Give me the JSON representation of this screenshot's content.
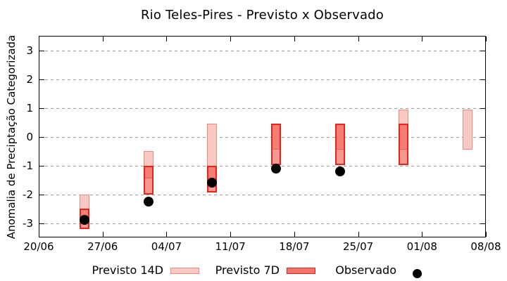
{
  "chart_data": {
    "type": "rangebar",
    "title": "Rio Teles-Pires - Previsto x Observado",
    "ylabel": "Anomalia de Preciptação Categorizada",
    "xlabel": "",
    "ylim": [
      -3.5,
      3.5
    ],
    "xlim_days": [
      0,
      49
    ],
    "y_ticks": [
      3,
      2,
      1,
      0,
      -1,
      -2,
      -3
    ],
    "x_ticks": [
      {
        "day": 0,
        "label": "20/06"
      },
      {
        "day": 7,
        "label": "27/06"
      },
      {
        "day": 14,
        "label": "04/07"
      },
      {
        "day": 21,
        "label": "11/07"
      },
      {
        "day": 28,
        "label": "18/07"
      },
      {
        "day": 35,
        "label": "25/07"
      },
      {
        "day": 42,
        "label": "01/08"
      },
      {
        "day": 49,
        "label": "08/08"
      }
    ],
    "grid": "horizontal-dashed",
    "legend_position": "below-plot",
    "series": [
      {
        "name": "Previsto 14D",
        "type": "range-box"
      },
      {
        "name": "Previsto 7D",
        "type": "range-box"
      },
      {
        "name": "Observado",
        "type": "point"
      }
    ],
    "points": [
      {
        "label": "25/06",
        "day": 5,
        "p14": [
          -3.0,
          -2.0
        ],
        "p7": [
          -3.2,
          -2.5
        ],
        "obs": -2.9
      },
      {
        "label": "02/07",
        "day": 12,
        "p14": [
          -1.45,
          -0.5
        ],
        "p7": [
          -2.0,
          -1.0
        ],
        "obs": -2.25
      },
      {
        "label": "09/07",
        "day": 19,
        "p14": [
          -1.45,
          0.45
        ],
        "p7": [
          -1.95,
          -1.0
        ],
        "obs": -1.6
      },
      {
        "label": "16/07",
        "day": 26,
        "p14": [
          -0.45,
          0.45
        ],
        "p7": [
          -1.0,
          0.45
        ],
        "obs": -1.1
      },
      {
        "label": "23/07",
        "day": 33,
        "p14": [
          -0.45,
          0.45
        ],
        "p7": [
          -1.0,
          0.45
        ],
        "obs": -1.2
      },
      {
        "label": "30/07",
        "day": 40,
        "p14": [
          -0.45,
          0.95
        ],
        "p7": [
          -1.0,
          0.45
        ],
        "obs": null
      },
      {
        "label": "06/08",
        "day": 47,
        "p14": [
          -0.45,
          0.95
        ],
        "p7": null,
        "obs": null
      }
    ]
  },
  "legend": {
    "p14": "Previsto 14D",
    "p7": "Previsto 7D",
    "obs": "Observado"
  },
  "colors": {
    "p14_fill": "#f9c9c3",
    "p14_border": "#ef8a7d",
    "p7_fill": "rgba(240,55,45,0.52)",
    "p7_border": "#e6241a",
    "p7_legend_fill": "#f4736b",
    "observed": "#000000",
    "grid": "#9e9e9e",
    "axis": "#000000"
  }
}
